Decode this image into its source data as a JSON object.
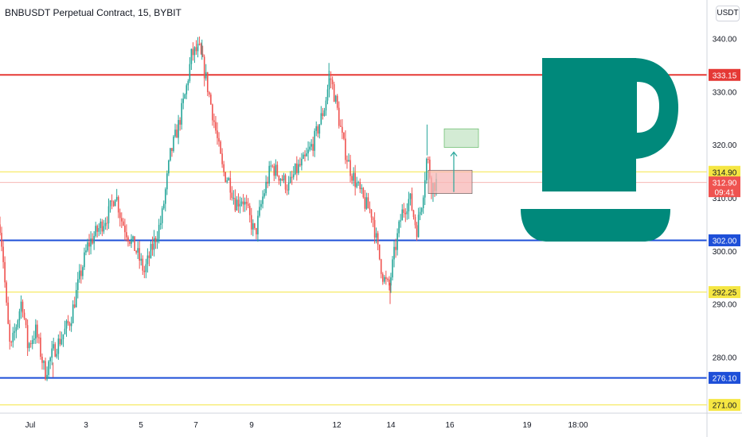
{
  "header": {
    "title": "BNBUSDT Perpetual Contract, 15, BYBIT",
    "currency": "USDT"
  },
  "colors": {
    "up": "#26a69a",
    "down": "#ef5350",
    "resistance_red": "#e53935",
    "support_blue": "#1e4fd8",
    "level_yellow": "#f5e642",
    "entry_pink": "#f7b7b5",
    "cup": "#00897b",
    "target_green": "#c8e6c9"
  },
  "chart_data": {
    "type": "candlestick",
    "title": "BNBUSDT Perpetual Contract, 15, BYBIT",
    "xlabel": "",
    "ylabel": "",
    "ylim": [
      268,
      343
    ],
    "y_ticks": [
      "340.00",
      "330.00",
      "320.00",
      "310.00",
      "300.00",
      "290.00",
      "280.00"
    ],
    "x_ticks": [
      "Jul",
      "3",
      "5",
      "7",
      "9",
      "12",
      "14",
      "16",
      "19",
      "18:00"
    ],
    "grid": false,
    "path": [
      [
        0,
        305
      ],
      [
        0.06,
        298
      ],
      [
        0.12,
        288
      ],
      [
        0.18,
        281
      ],
      [
        0.28,
        286
      ],
      [
        0.38,
        291
      ],
      [
        0.48,
        282
      ],
      [
        0.62,
        285
      ],
      [
        0.78,
        277
      ],
      [
        0.92,
        281
      ],
      [
        1.08,
        284
      ],
      [
        1.22,
        287
      ],
      [
        1.38,
        295
      ],
      [
        1.52,
        301
      ],
      [
        1.7,
        304
      ],
      [
        1.88,
        307
      ],
      [
        2.0,
        311
      ],
      [
        2.1,
        306
      ],
      [
        2.22,
        303
      ],
      [
        2.36,
        300
      ],
      [
        2.5,
        296
      ],
      [
        2.62,
        300
      ],
      [
        2.8,
        306
      ],
      [
        2.95,
        318
      ],
      [
        3.1,
        324
      ],
      [
        3.22,
        330
      ],
      [
        3.32,
        337
      ],
      [
        3.45,
        338
      ],
      [
        3.56,
        333
      ],
      [
        3.7,
        325
      ],
      [
        3.86,
        315
      ],
      [
        3.98,
        313
      ],
      [
        4.08,
        309
      ],
      [
        4.2,
        310
      ],
      [
        4.3,
        307
      ],
      [
        4.42,
        303
      ],
      [
        4.55,
        310
      ],
      [
        4.7,
        316
      ],
      [
        4.86,
        314
      ],
      [
        5.0,
        312
      ],
      [
        5.12,
        315
      ],
      [
        5.28,
        317
      ],
      [
        5.45,
        321
      ],
      [
        5.62,
        327
      ],
      [
        5.72,
        333
      ],
      [
        5.82,
        328
      ],
      [
        5.95,
        320
      ],
      [
        6.08,
        315
      ],
      [
        6.2,
        312
      ],
      [
        6.32,
        309
      ],
      [
        6.45,
        307
      ],
      [
        6.55,
        300
      ],
      [
        6.64,
        295
      ],
      [
        6.74,
        293
      ],
      [
        6.84,
        300
      ],
      [
        6.96,
        307
      ],
      [
        7.1,
        310
      ],
      [
        7.22,
        304
      ],
      [
        7.32,
        310
      ],
      [
        7.4,
        318
      ],
      [
        7.48,
        312
      ],
      [
        7.56,
        313
      ]
    ],
    "levels": [
      {
        "value": 333.15,
        "label": "333.15",
        "color": "red"
      },
      {
        "value": 314.9,
        "label": "314.90",
        "color": "yellow"
      },
      {
        "value": 312.9,
        "label": "312.90",
        "color": "pink",
        "countdown": "09:41"
      },
      {
        "value": 302.0,
        "label": "302.00",
        "color": "blue"
      },
      {
        "value": 292.25,
        "label": "292.25",
        "color": "yellow"
      },
      {
        "value": 276.1,
        "label": "276.10",
        "color": "blue"
      },
      {
        "value": 271.0,
        "label": "271.00",
        "color": "yellow"
      }
    ],
    "annotations": {
      "entry_box": {
        "y_low": 310.8,
        "y_high": 315.2
      },
      "target_box": {
        "y_low": 319.5,
        "y_high": 323.0
      },
      "icon": "coffee-cup-icon"
    }
  }
}
